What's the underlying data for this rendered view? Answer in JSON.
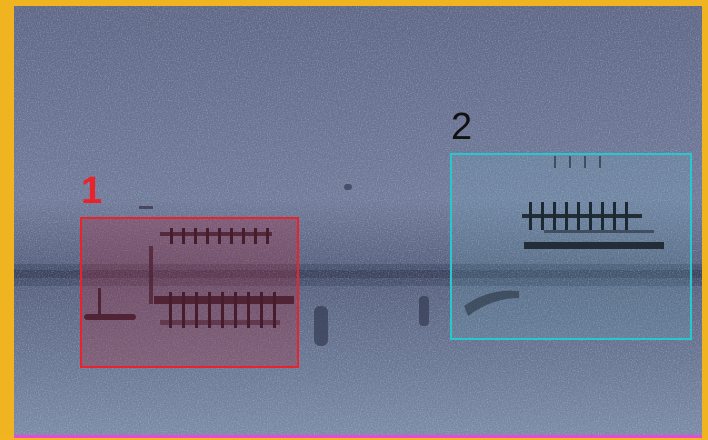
{
  "annotations": [
    {
      "label": "1",
      "color": "#e8232b"
    },
    {
      "label": "2",
      "color": "#27c7cf"
    }
  ],
  "colors": {
    "frame": "#f2b51e",
    "spectrogram_background": "#6e7a98",
    "bottom_line": "#e64ad8"
  }
}
